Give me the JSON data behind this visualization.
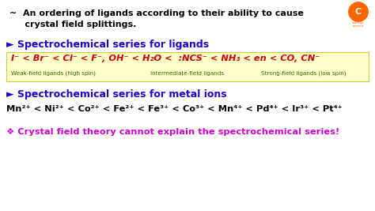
{
  "bg_color": "#ffffff",
  "title_color": "#000000",
  "blue_heading_color": "#2200cc",
  "ligand_series_color": "#cc0000",
  "metal_series_color": "#000000",
  "yellow_box_color": "#ffffcc",
  "yellow_box_border": "#cccc44",
  "green_label_color": "#336600",
  "bottom_text_color": "#cc00cc",
  "intro_text_line1": "~  An ordering of ligands according to their ability to cause",
  "intro_text_line2": "     crystal field splittings.",
  "heading1": "► Spectrochemical series for ligands",
  "heading2": "► Spectrochemical series for metal ions",
  "ligand_series": "I⁻ < Br⁻ < Cl⁻ < F⁻, OH⁻ < H₂O <  :NCS⁻ < NH₃ < en < CO, CN⁻",
  "metal_series": "Mn²⁺ < Ni²⁺ < Co²⁺ < Fe²⁺ < Fe³⁺ < Co³⁺ < Mn⁴⁺ < Pd⁴⁺ < Ir³⁺ < Pt⁴⁺",
  "label_weak": "Weak-field ligands (high spin)",
  "label_intermediate": "Intermediate-field ligands",
  "label_strong": "Strong-field ligands (low spin)",
  "bottom_text": "❖ Crystal field theory cannot explain the spectrochemical series!",
  "logo_color": "#ff6600",
  "logo_border_color": "#ff6600"
}
